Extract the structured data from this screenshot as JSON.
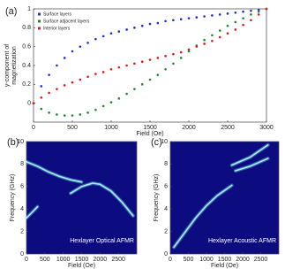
{
  "chart_data": [
    {
      "type": "scatter",
      "panel_label": "(a)",
      "xlabel": "Field (Oe)",
      "ylabel": [
        "y-component of",
        "magnetization"
      ],
      "xlim": [
        0,
        3000
      ],
      "xticks": [
        0,
        500,
        1000,
        1500,
        2000,
        2500,
        3000
      ],
      "ylim": [
        -0.2,
        1
      ],
      "yticks": [
        0,
        0.2,
        0.4,
        0.6,
        0.8,
        1
      ],
      "legend": "upper-left",
      "x": [
        0,
        100,
        200,
        300,
        400,
        500,
        600,
        700,
        800,
        900,
        1000,
        1100,
        1200,
        1300,
        1400,
        1500,
        1600,
        1700,
        1800,
        1900,
        2000,
        2100,
        2200,
        2300,
        2400,
        2500,
        2600,
        2700,
        2800,
        2900,
        3000
      ],
      "series": [
        {
          "name": "Surface layers",
          "color": "#1f2fd8",
          "values": [
            0.0,
            0.18,
            0.3,
            0.4,
            0.48,
            0.55,
            0.6,
            0.64,
            0.68,
            0.71,
            0.74,
            0.76,
            0.78,
            0.8,
            0.82,
            0.84,
            0.85,
            0.87,
            0.88,
            0.89,
            0.9,
            0.91,
            0.92,
            0.93,
            0.94,
            0.95,
            0.96,
            0.97,
            0.98,
            0.99,
            1.0
          ]
        },
        {
          "name": "Surface adjacent layers",
          "color": "#1a8a2a",
          "values": [
            0.0,
            -0.06,
            -0.1,
            -0.12,
            -0.13,
            -0.13,
            -0.12,
            -0.1,
            -0.07,
            -0.03,
            0.01,
            0.05,
            0.1,
            0.15,
            0.2,
            0.25,
            0.3,
            0.36,
            0.42,
            0.48,
            0.55,
            0.61,
            0.67,
            0.72,
            0.77,
            0.82,
            0.86,
            0.9,
            0.94,
            0.97,
            1.0
          ]
        },
        {
          "name": "Interior layers",
          "color": "#e01818",
          "values": [
            0.0,
            0.06,
            0.11,
            0.15,
            0.19,
            0.22,
            0.25,
            0.28,
            0.31,
            0.33,
            0.36,
            0.38,
            0.4,
            0.42,
            0.44,
            0.46,
            0.48,
            0.5,
            0.52,
            0.54,
            0.57,
            0.6,
            0.63,
            0.66,
            0.7,
            0.74,
            0.78,
            0.83,
            0.88,
            0.94,
            1.0
          ]
        }
      ]
    },
    {
      "type": "heatmap",
      "panel_label": "(b)",
      "xlabel": "Field (Oe)",
      "ylabel": "Frequency (GHz)",
      "annotation": "Hexlayer Optical AFMR",
      "xlim": [
        0,
        3000
      ],
      "xticks": [
        0,
        500,
        1000,
        1500,
        2000,
        2500
      ],
      "ylim": [
        0,
        10
      ],
      "yticks": [
        0,
        2,
        4,
        6,
        8,
        10
      ],
      "background": "#0c0c80",
      "color": "#9cf3ff",
      "branches": [
        {
          "x": [
            0,
            300,
            600,
            900,
            1200,
            1500
          ],
          "y": [
            8.2,
            7.8,
            7.3,
            6.9,
            6.6,
            6.4
          ]
        },
        {
          "x": [
            1200,
            1500,
            1800,
            2000,
            2300,
            2600,
            2900
          ],
          "y": [
            5.4,
            6.0,
            6.3,
            6.2,
            5.6,
            4.6,
            3.4
          ]
        },
        {
          "x": [
            0,
            150,
            300
          ],
          "y": [
            3.2,
            3.7,
            4.2
          ]
        }
      ]
    },
    {
      "type": "heatmap",
      "panel_label": "(c)",
      "xlabel": "Field (Oe)",
      "ylabel": "Frequency (GHz)",
      "annotation": "Hexlayer Acoustic AFMR",
      "xlim": [
        0,
        3000
      ],
      "xticks": [
        0,
        500,
        1000,
        1500,
        2000,
        2500
      ],
      "ylim": [
        0,
        10
      ],
      "yticks": [
        0,
        2,
        4,
        6,
        8,
        10
      ],
      "background": "#0c0c80",
      "color": "#9cf3ff",
      "branches": [
        {
          "x": [
            100,
            400,
            700,
            1000,
            1300,
            1700
          ],
          "y": [
            0.6,
            1.9,
            3.2,
            4.3,
            5.2,
            6.1
          ]
        },
        {
          "x": [
            1800,
            2200,
            2700
          ],
          "y": [
            7.4,
            7.8,
            8.5
          ]
        },
        {
          "x": [
            1700,
            2200,
            2700
          ],
          "y": [
            7.9,
            8.6,
            9.7
          ]
        }
      ]
    }
  ]
}
